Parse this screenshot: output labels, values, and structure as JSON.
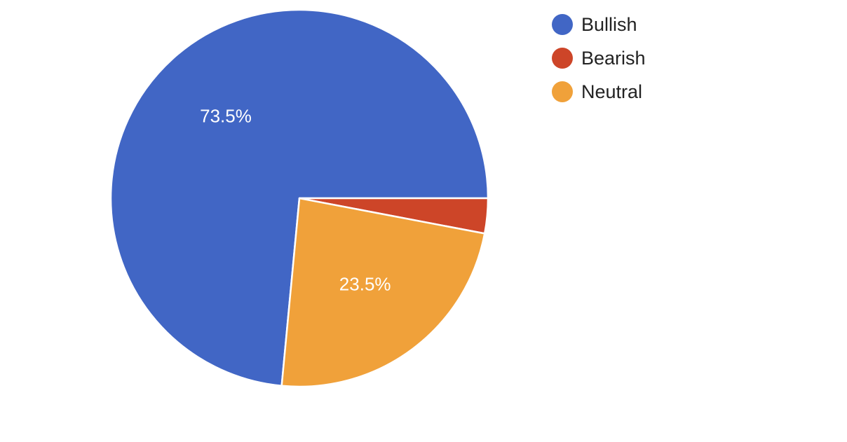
{
  "chart_data": {
    "type": "pie",
    "title": "",
    "legend_position": "top-right",
    "slices": [
      {
        "label": "Bullish",
        "value": 73.5,
        "color": "#4166c5",
        "value_label": "73.5%"
      },
      {
        "label": "Bearish",
        "value": 3.0,
        "color": "#cd4528",
        "value_label": ""
      },
      {
        "label": "Neutral",
        "value": 23.5,
        "color": "#f0a13a",
        "value_label": "23.5%"
      }
    ]
  }
}
